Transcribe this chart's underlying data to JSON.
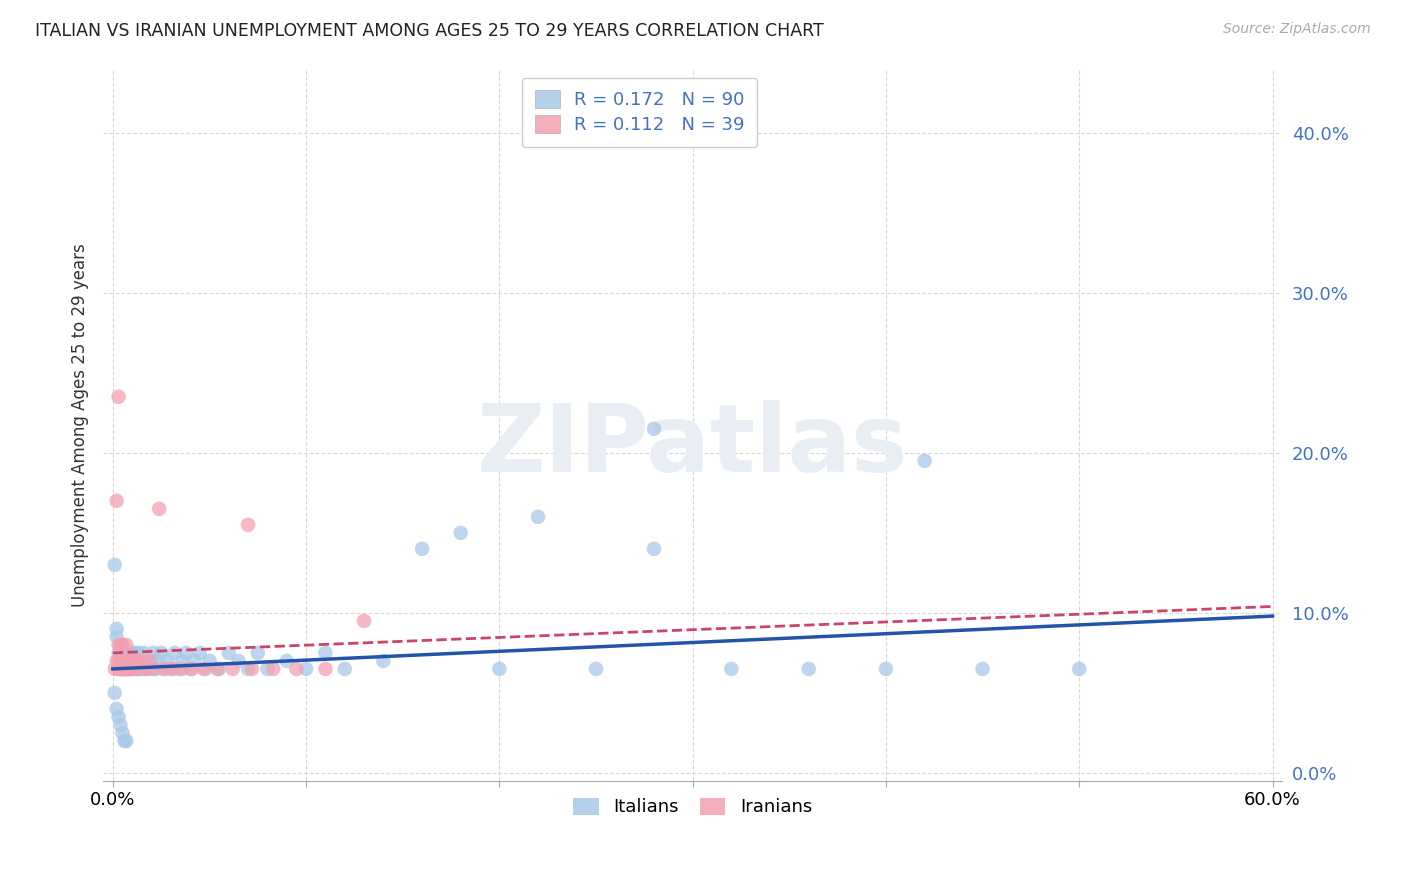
{
  "title": "ITALIAN VS IRANIAN UNEMPLOYMENT AMONG AGES 25 TO 29 YEARS CORRELATION CHART",
  "source": "Source: ZipAtlas.com",
  "ylabel": "Unemployment Among Ages 25 to 29 years",
  "xlabel": "",
  "xlim": [
    -0.005,
    0.605
  ],
  "ylim": [
    -0.005,
    0.44
  ],
  "yticks": [
    0.0,
    0.1,
    0.2,
    0.3,
    0.4
  ],
  "xticks": [
    0.0,
    0.1,
    0.2,
    0.3,
    0.4,
    0.5,
    0.6
  ],
  "grid_color": "#d0d0d0",
  "background_color": "#ffffff",
  "italian_color": "#a8c8e8",
  "iranian_color": "#f4a0b0",
  "italian_line_color": "#2255aa",
  "iranian_line_color": "#cc4466",
  "watermark_color": "#e8eef4",
  "tick_color": "#4472c4",
  "watermark": "ZIPatlas",
  "legend_label_italian": "Italians",
  "legend_label_iranian": "Iranians",
  "italian_R": 0.172,
  "italian_N": 90,
  "iranian_R": 0.112,
  "iranian_N": 39,
  "italian_x": [
    0.001,
    0.002,
    0.002,
    0.003,
    0.003,
    0.003,
    0.004,
    0.004,
    0.004,
    0.005,
    0.005,
    0.005,
    0.005,
    0.006,
    0.006,
    0.006,
    0.007,
    0.007,
    0.007,
    0.007,
    0.008,
    0.008,
    0.008,
    0.009,
    0.009,
    0.009,
    0.01,
    0.01,
    0.01,
    0.011,
    0.011,
    0.012,
    0.012,
    0.013,
    0.013,
    0.014,
    0.015,
    0.015,
    0.016,
    0.017,
    0.018,
    0.019,
    0.02,
    0.021,
    0.022,
    0.023,
    0.025,
    0.026,
    0.028,
    0.03,
    0.032,
    0.034,
    0.036,
    0.038,
    0.04,
    0.042,
    0.045,
    0.048,
    0.05,
    0.055,
    0.06,
    0.065,
    0.07,
    0.075,
    0.08,
    0.09,
    0.1,
    0.11,
    0.12,
    0.14,
    0.16,
    0.18,
    0.2,
    0.22,
    0.25,
    0.28,
    0.32,
    0.36,
    0.4,
    0.45,
    0.28,
    0.42,
    0.5,
    0.001,
    0.002,
    0.003,
    0.004,
    0.005,
    0.006,
    0.007
  ],
  "italian_y": [
    0.13,
    0.09,
    0.085,
    0.075,
    0.07,
    0.065,
    0.08,
    0.07,
    0.065,
    0.07,
    0.065,
    0.075,
    0.065,
    0.07,
    0.065,
    0.075,
    0.07,
    0.065,
    0.075,
    0.065,
    0.07,
    0.065,
    0.075,
    0.065,
    0.07,
    0.065,
    0.07,
    0.075,
    0.065,
    0.07,
    0.075,
    0.065,
    0.07,
    0.065,
    0.075,
    0.065,
    0.07,
    0.065,
    0.075,
    0.065,
    0.07,
    0.065,
    0.07,
    0.075,
    0.065,
    0.07,
    0.075,
    0.065,
    0.07,
    0.065,
    0.075,
    0.065,
    0.07,
    0.075,
    0.065,
    0.07,
    0.075,
    0.065,
    0.07,
    0.065,
    0.075,
    0.07,
    0.065,
    0.075,
    0.065,
    0.07,
    0.065,
    0.075,
    0.065,
    0.07,
    0.14,
    0.15,
    0.065,
    0.16,
    0.065,
    0.14,
    0.065,
    0.065,
    0.065,
    0.065,
    0.215,
    0.195,
    0.065,
    0.05,
    0.04,
    0.035,
    0.03,
    0.025,
    0.02,
    0.02
  ],
  "iranian_x": [
    0.001,
    0.002,
    0.003,
    0.003,
    0.004,
    0.004,
    0.005,
    0.005,
    0.006,
    0.006,
    0.007,
    0.007,
    0.008,
    0.008,
    0.009,
    0.01,
    0.011,
    0.012,
    0.013,
    0.015,
    0.017,
    0.019,
    0.021,
    0.024,
    0.027,
    0.031,
    0.036,
    0.041,
    0.047,
    0.054,
    0.062,
    0.072,
    0.083,
    0.095,
    0.11,
    0.002,
    0.003,
    0.07,
    0.13
  ],
  "iranian_y": [
    0.065,
    0.07,
    0.065,
    0.08,
    0.065,
    0.07,
    0.065,
    0.08,
    0.065,
    0.07,
    0.065,
    0.08,
    0.065,
    0.07,
    0.065,
    0.07,
    0.065,
    0.07,
    0.065,
    0.07,
    0.065,
    0.07,
    0.065,
    0.165,
    0.065,
    0.065,
    0.065,
    0.065,
    0.065,
    0.065,
    0.065,
    0.065,
    0.065,
    0.065,
    0.065,
    0.17,
    0.235,
    0.155,
    0.095
  ],
  "italian_trendline": [
    0.065,
    0.098
  ],
  "iranian_trendline": [
    0.075,
    0.104
  ]
}
